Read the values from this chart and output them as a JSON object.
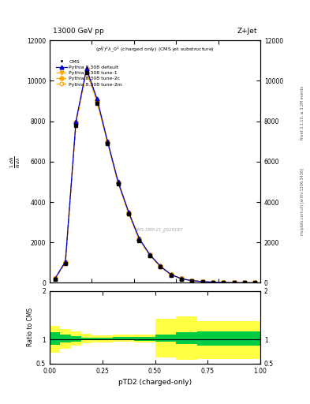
{
  "title_top": "13000 GeV pp",
  "title_right": "Z+Jet",
  "observable": "$(p_T^D)^2\\lambda\\_0^2$ (charged only) (CMS jet substructure)",
  "xlabel": "pTD2 (charged-only)",
  "ylabel_ratio": "Ratio to CMS",
  "right_label_top": "Rivet 3.1.10, ≥ 3.2M events",
  "right_label_bot": "mcplots.cern.ch [arXiv:1306.3436]",
  "watermark": "CMS-SMP-21_JJ920187",
  "xlim": [
    0,
    1
  ],
  "ylim_main": [
    0,
    12000
  ],
  "ylim_ratio": [
    0.5,
    2.0
  ],
  "x_data": [
    0.025,
    0.075,
    0.125,
    0.175,
    0.225,
    0.275,
    0.325,
    0.375,
    0.425,
    0.475,
    0.525,
    0.575,
    0.625,
    0.675,
    0.725,
    0.775,
    0.825,
    0.875,
    0.925,
    0.975
  ],
  "cms_y": [
    180,
    950,
    7800,
    10400,
    8900,
    6900,
    4900,
    3400,
    2100,
    1350,
    780,
    380,
    185,
    95,
    55,
    28,
    13,
    7,
    3,
    1
  ],
  "default_y": [
    200,
    1050,
    8000,
    10600,
    9100,
    7000,
    5000,
    3500,
    2200,
    1400,
    830,
    415,
    205,
    105,
    62,
    30,
    16,
    8,
    4,
    2
  ],
  "tune1_y": [
    195,
    1000,
    7900,
    10500,
    9000,
    6950,
    4950,
    3450,
    2150,
    1370,
    810,
    405,
    200,
    100,
    59,
    28,
    14,
    7,
    3,
    1
  ],
  "tune2c_y": [
    198,
    1030,
    7950,
    10550,
    9050,
    6980,
    4980,
    3480,
    2180,
    1390,
    820,
    410,
    202,
    102,
    60,
    29,
    15,
    7,
    3,
    1
  ],
  "tune2m_y": [
    192,
    980,
    7850,
    10450,
    8950,
    6920,
    4920,
    3420,
    2120,
    1360,
    800,
    400,
    198,
    98,
    57,
    27,
    13,
    6,
    3,
    1
  ],
  "ratio_x_edges": [
    0.0,
    0.05,
    0.1,
    0.15,
    0.2,
    0.3,
    0.4,
    0.5,
    0.6,
    0.7,
    1.0
  ],
  "ratio_green_lo": [
    0.88,
    0.93,
    0.96,
    0.98,
    0.98,
    0.98,
    0.97,
    0.96,
    0.9,
    0.87,
    0.9
  ],
  "ratio_green_hi": [
    1.14,
    1.1,
    1.07,
    1.04,
    1.04,
    1.05,
    1.05,
    1.1,
    1.15,
    1.17,
    1.17
  ],
  "ratio_yellow_lo": [
    0.73,
    0.8,
    0.87,
    0.92,
    0.94,
    0.96,
    0.94,
    0.62,
    0.58,
    0.6,
    0.82
  ],
  "ratio_yellow_hi": [
    1.27,
    1.22,
    1.17,
    1.11,
    1.09,
    1.1,
    1.1,
    1.43,
    1.48,
    1.38,
    1.33
  ],
  "color_cms": "#000000",
  "color_default": "#0000cc",
  "color_tune1": "#ffa500",
  "color_tune2c": "#ffa500",
  "color_tune2m": "#ffa500",
  "color_green": "#00cc44",
  "color_yellow": "#ffff44",
  "yticks_main": [
    0,
    2000,
    4000,
    6000,
    8000,
    10000,
    12000
  ],
  "ytick_labels_main": [
    "0",
    "2000",
    "4000",
    "6000",
    "8000",
    "10000",
    "12000"
  ]
}
